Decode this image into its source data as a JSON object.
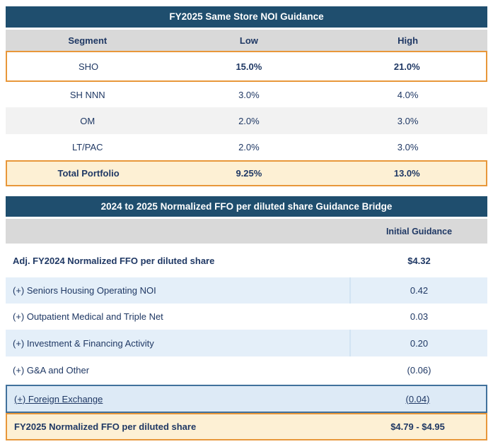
{
  "colors": {
    "header_navy": "#1F4E6E",
    "text_navy": "#1F3864",
    "header_gray": "#D9D9D9",
    "row_gray": "#F2F2F2",
    "row_light_blue": "#E4EFF9",
    "highlight_cream": "#FDF0D4",
    "accent_orange_border": "#E8973A",
    "accent_blue_border": "#41719C"
  },
  "noi_table": {
    "title": "FY2025 Same Store NOI Guidance",
    "headers": [
      "Segment",
      "Low",
      "High"
    ],
    "rows": [
      {
        "segment": "SHO",
        "low": "15.0%",
        "high": "21.0%"
      },
      {
        "segment": "SH NNN",
        "low": "3.0%",
        "high": "4.0%"
      },
      {
        "segment": "OM",
        "low": "2.0%",
        "high": "3.0%"
      },
      {
        "segment": "LT/PAC",
        "low": "2.0%",
        "high": "3.0%"
      },
      {
        "segment": "Total Portfolio",
        "low": "9.25%",
        "high": "13.0%"
      }
    ]
  },
  "bridge_table": {
    "title": "2024 to 2025 Normalized FFO per diluted share Guidance Bridge",
    "value_column_header": "Initial Guidance",
    "rows": [
      {
        "label": "Adj. FY2024 Normalized FFO per diluted share",
        "value": "$4.32"
      },
      {
        "label": "(+) Seniors Housing Operating NOI",
        "value": "0.42"
      },
      {
        "label": "(+) Outpatient Medical and Triple Net",
        "value": "0.03"
      },
      {
        "label": "(+) Investment & Financing Activity",
        "value": "0.20"
      },
      {
        "label": "(+) G&A and Other",
        "value": "(0.06)"
      },
      {
        "label": "(+) Foreign Exchange",
        "value": "(0.04)"
      },
      {
        "label": "FY2025 Normalized FFO per diluted share",
        "value": "$4.79 - $4.95"
      }
    ]
  }
}
